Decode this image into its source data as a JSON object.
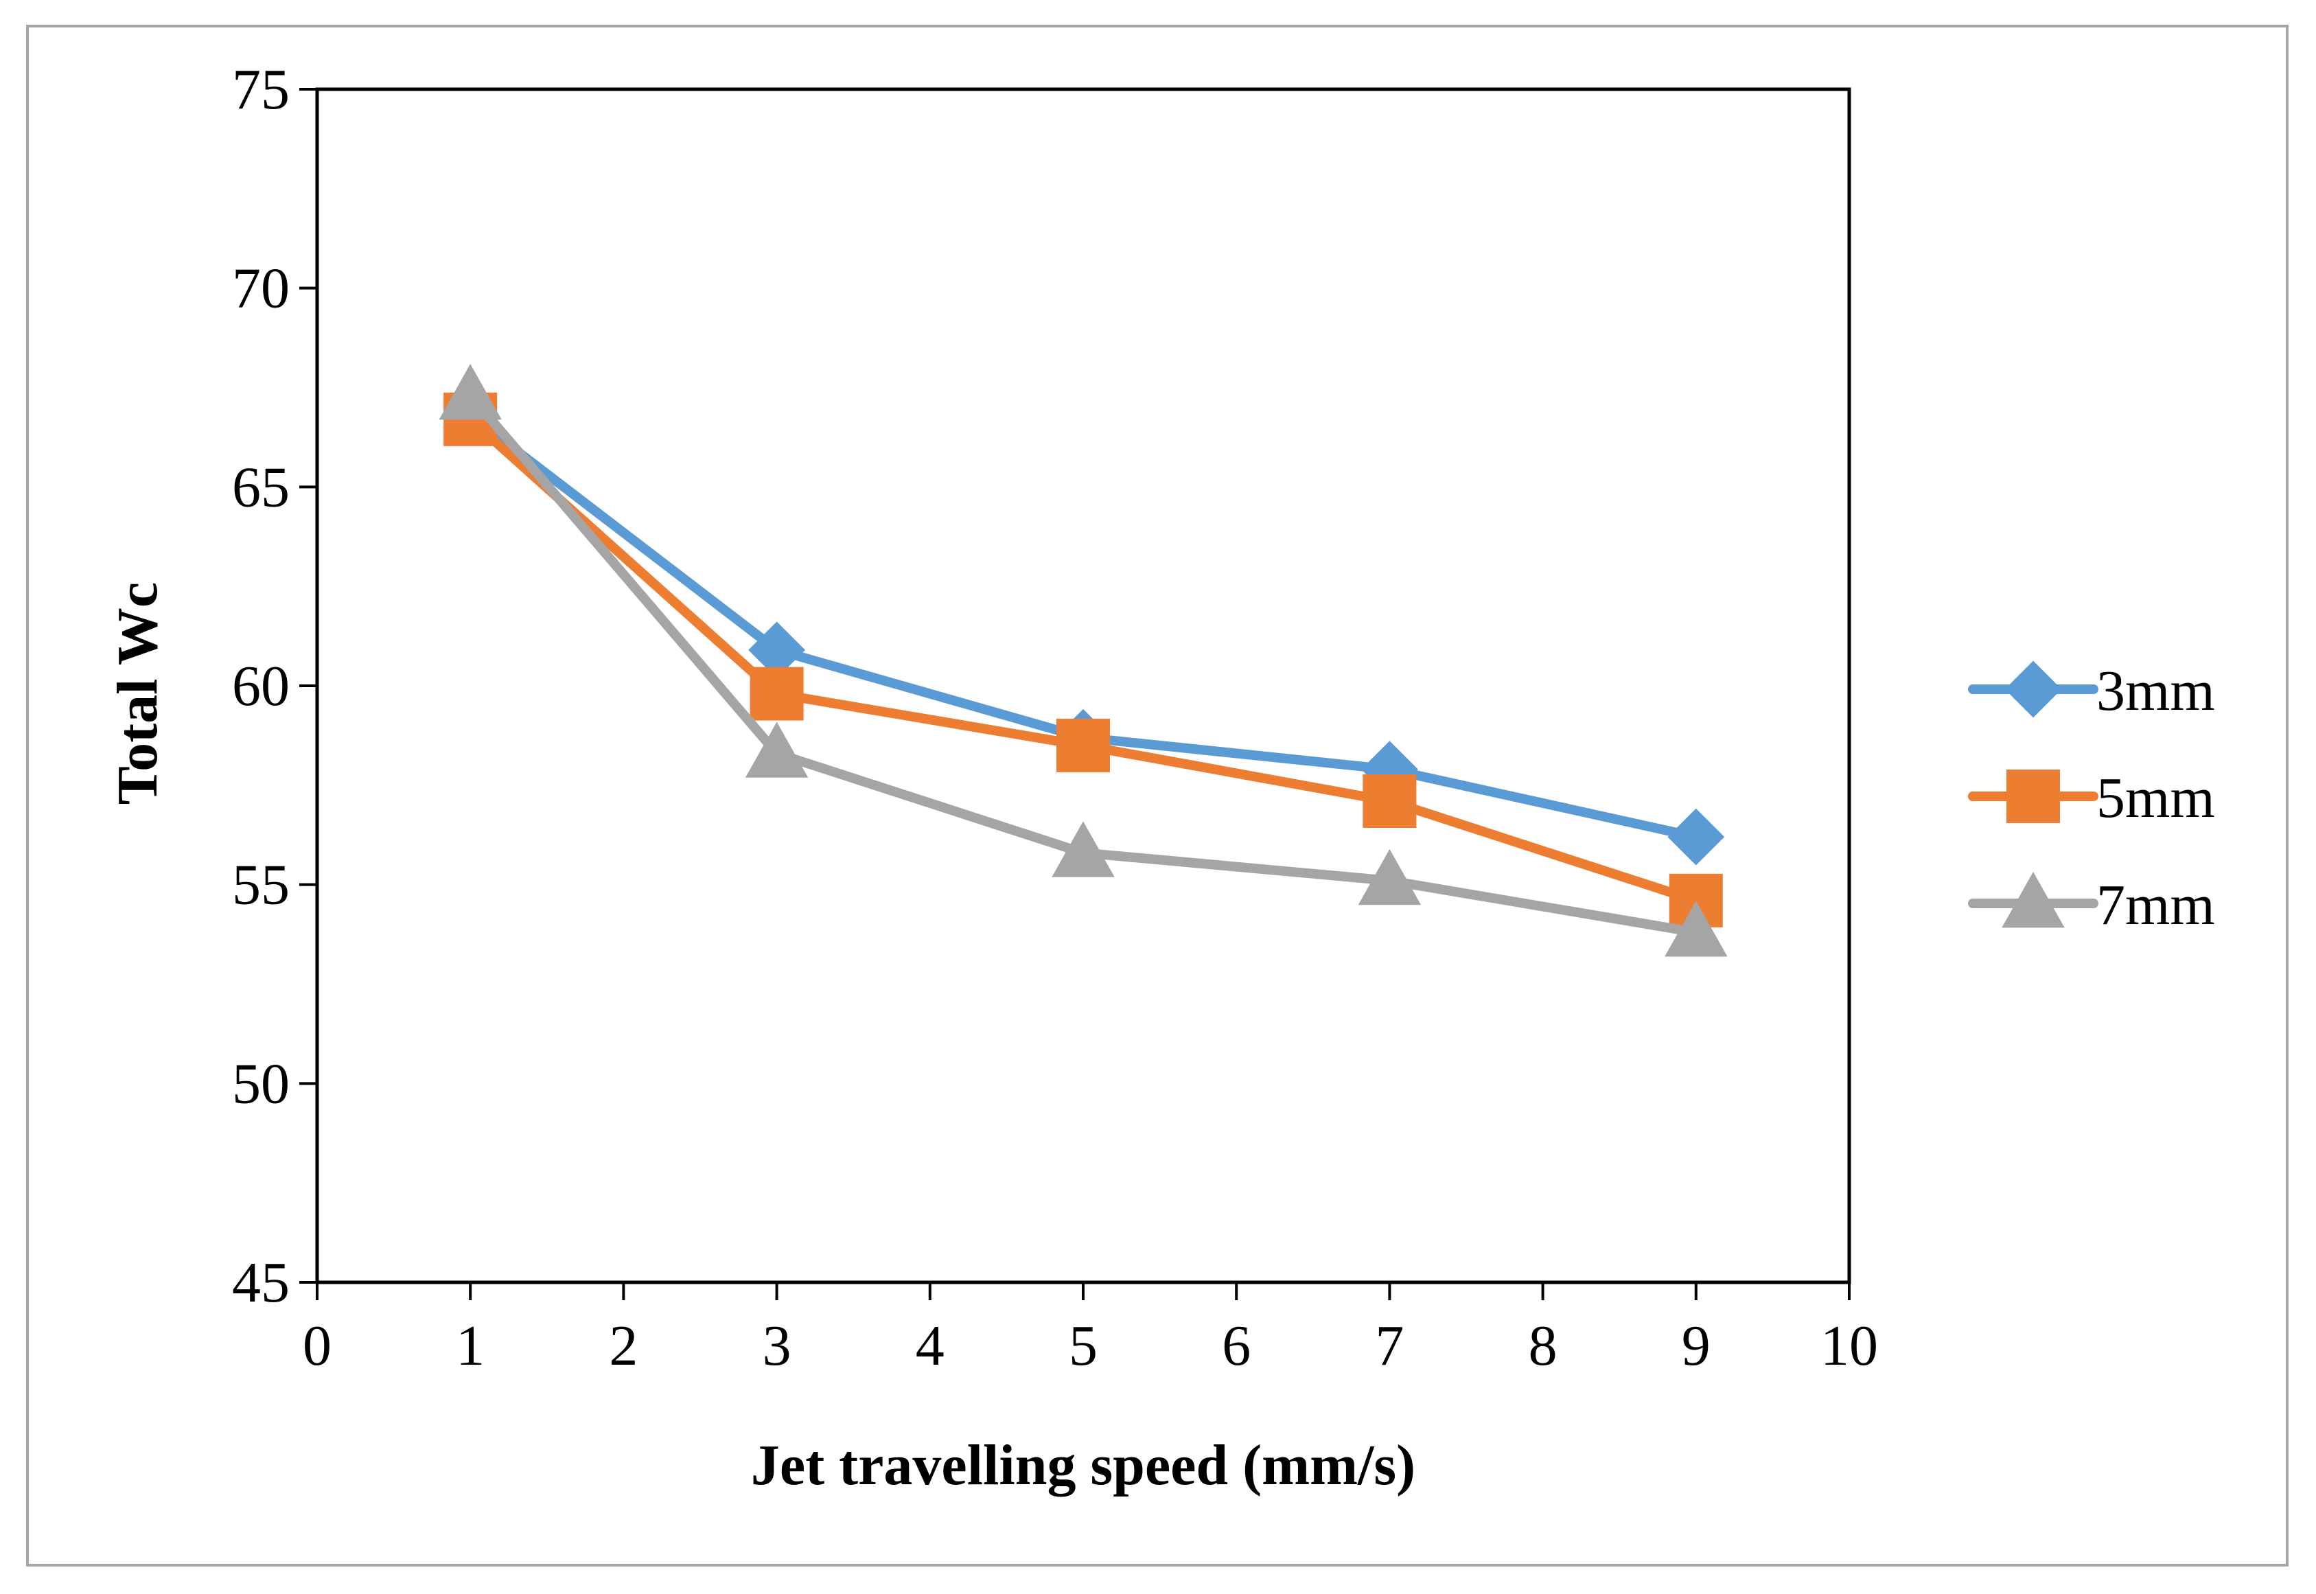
{
  "chart_data": {
    "type": "line",
    "title": "",
    "xlabel": "Jet travelling speed (mm/s)",
    "ylabel": "Total Wc",
    "xlim": [
      0,
      10
    ],
    "ylim": [
      45,
      75
    ],
    "x_ticks": [
      0,
      1,
      2,
      3,
      4,
      5,
      6,
      7,
      8,
      9,
      10
    ],
    "y_ticks": [
      45,
      50,
      55,
      60,
      65,
      70,
      75
    ],
    "grid": false,
    "legend_position": "right",
    "x": [
      1,
      3,
      5,
      7,
      9
    ],
    "series": [
      {
        "name": "3mm",
        "marker": "diamond",
        "color": "#5b9bd5",
        "values": [
          66.8,
          60.9,
          58.7,
          57.9,
          56.2
        ]
      },
      {
        "name": "5mm",
        "marker": "square",
        "color": "#ed7d31",
        "values": [
          66.7,
          59.8,
          58.5,
          57.1,
          54.6
        ]
      },
      {
        "name": "7mm",
        "marker": "triangle",
        "color": "#a5a5a5",
        "values": [
          67.3,
          58.3,
          55.8,
          55.1,
          53.8
        ]
      }
    ]
  }
}
